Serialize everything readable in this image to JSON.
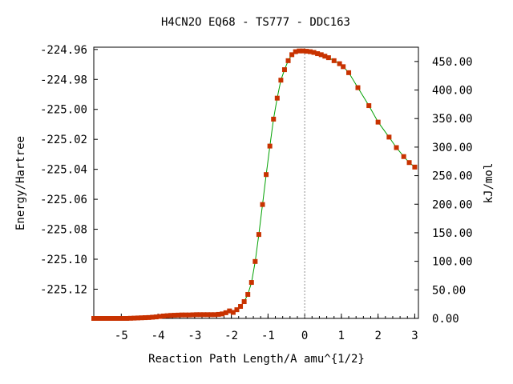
{
  "chart_data": {
    "type": "line",
    "title": "H4CN2O   EQ68 - TS777 - DDC163",
    "xlabel": "Reaction Path Length/A amu^{1/2}",
    "ylabel": "Energy/Hartree",
    "y2label": "kJ/mol",
    "xlim": [
      -5.75,
      3.1
    ],
    "ylim": [
      -225.1395,
      -224.9585
    ],
    "y2lim": [
      0.0,
      475.0
    ],
    "x_ticks": [
      -5,
      -4,
      -3,
      -2,
      -1,
      0,
      1,
      2,
      3
    ],
    "x_tick_labels": [
      "-5",
      "-4",
      "-3",
      "-2",
      "-1",
      "0",
      "1",
      "2",
      "3"
    ],
    "y_ticks": [
      -224.96,
      -224.98,
      -225.0,
      -225.02,
      -225.04,
      -225.06,
      -225.08,
      -225.1,
      -225.12
    ],
    "y_tick_labels": [
      "-224.96",
      "-224.98",
      "-225.00",
      "-225.02",
      "-225.04",
      "-225.06",
      "-225.08",
      "-225.10",
      "-225.12"
    ],
    "y2_ticks": [
      0,
      50,
      100,
      150,
      200,
      250,
      300,
      350,
      400,
      450
    ],
    "y2_tick_labels": [
      "0.00",
      "50.00",
      "100.00",
      "150.00",
      "200.00",
      "250.00",
      "300.00",
      "350.00",
      "400.00",
      "450.00"
    ],
    "ts_marker_x": 0.0,
    "grid": false,
    "line_color": "#00a000",
    "marker_color": "#c83200",
    "guide_color": "#909090",
    "series": [
      {
        "x": [
          -5.75,
          -5.65,
          -5.55,
          -5.45,
          -5.35,
          -5.25,
          -5.15,
          -5.05,
          -4.95,
          -4.85,
          -4.75,
          -4.65,
          -4.55,
          -4.45,
          -4.35,
          -4.25,
          -4.15,
          -4.05,
          -3.95,
          -3.85,
          -3.75,
          -3.65,
          -3.55,
          -3.45,
          -3.35,
          -3.25,
          -3.15,
          -3.05,
          -2.95,
          -2.85,
          -2.75,
          -2.65,
          -2.55,
          -2.45,
          -2.35,
          -2.25,
          -2.15,
          -2.05,
          -1.95,
          -1.85,
          -1.75,
          -1.65,
          -1.55,
          -1.45,
          -1.35,
          -1.25,
          -1.15,
          -1.05,
          -0.95,
          -0.85,
          -0.75,
          -0.65,
          -0.55,
          -0.45,
          -0.35,
          -0.25,
          -0.15,
          -0.05,
          0.05,
          0.15,
          0.25,
          0.35,
          0.45,
          0.55,
          0.65,
          0.8,
          0.95,
          1.05,
          1.2,
          1.45,
          1.75,
          2.0,
          2.3,
          2.5,
          2.7,
          2.85,
          3.0
        ],
        "y": [
          -225.1395,
          -225.1395,
          -225.1395,
          -225.1395,
          -225.1395,
          -225.1395,
          -225.1395,
          -225.1395,
          -225.1395,
          -225.1395,
          -225.1394,
          -225.1393,
          -225.1392,
          -225.1391,
          -225.139,
          -225.1389,
          -225.1387,
          -225.1385,
          -225.1382,
          -225.1379,
          -225.1377,
          -225.1375,
          -225.1374,
          -225.1373,
          -225.1372,
          -225.1372,
          -225.1372,
          -225.1371,
          -225.137,
          -225.137,
          -225.137,
          -225.137,
          -225.137,
          -225.137,
          -225.1368,
          -225.1365,
          -225.1357,
          -225.1345,
          -225.1355,
          -225.1337,
          -225.1315,
          -225.1283,
          -225.1235,
          -225.1155,
          -225.1015,
          -225.0835,
          -225.0635,
          -225.0435,
          -225.0245,
          -225.0065,
          -224.9925,
          -224.9805,
          -224.9735,
          -224.9675,
          -224.9635,
          -224.9615,
          -224.961,
          -224.961,
          -224.9612,
          -224.9615,
          -224.962,
          -224.9628,
          -224.9635,
          -224.9645,
          -224.9655,
          -224.9675,
          -224.9695,
          -224.9715,
          -224.9755,
          -224.9855,
          -224.9975,
          -225.0085,
          -225.0185,
          -225.0255,
          -225.0315,
          -225.0355,
          -225.0385
        ]
      }
    ]
  }
}
